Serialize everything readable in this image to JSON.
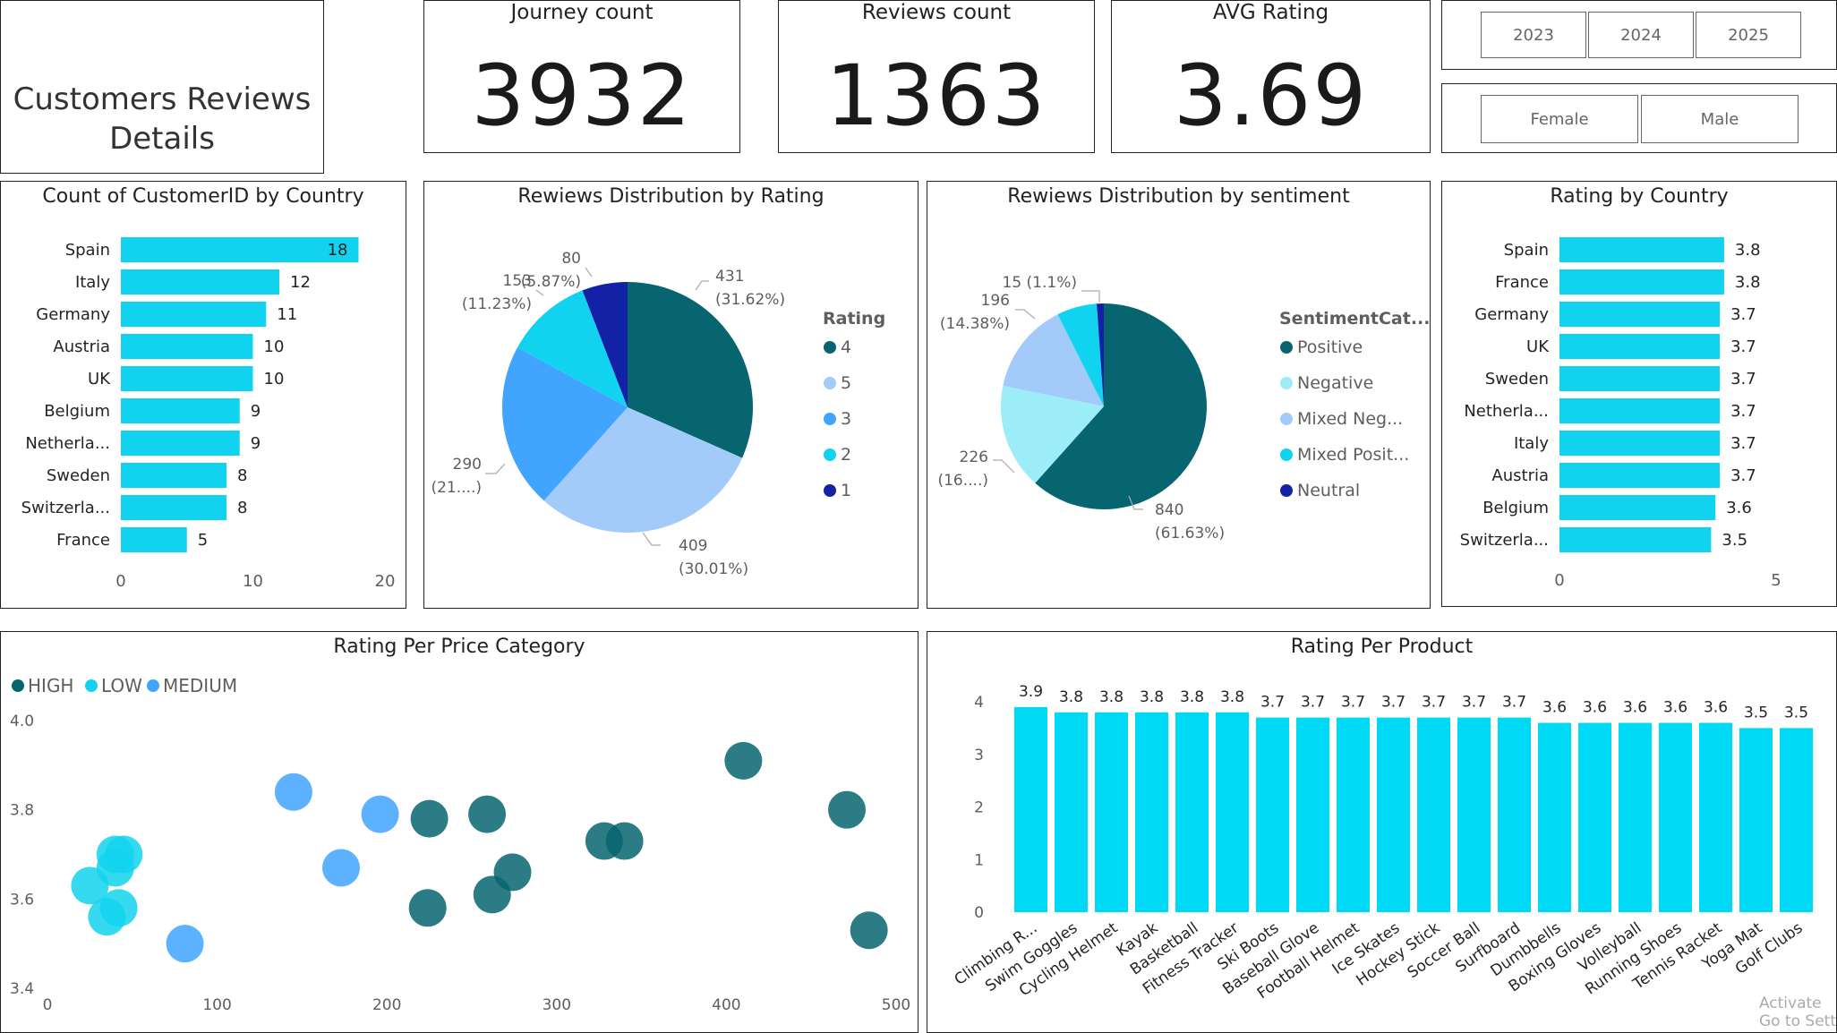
{
  "header": {
    "title_line1": "Customers Reviews",
    "title_line2": "Details"
  },
  "kpis": [
    {
      "label": "Journey count",
      "value": "3932"
    },
    {
      "label": "Reviews count",
      "value": "1363"
    },
    {
      "label": "AVG Rating",
      "value": "3.69"
    }
  ],
  "slicers": {
    "years": [
      "2023",
      "2024",
      "2025"
    ],
    "genders": [
      "Female",
      "Male"
    ]
  },
  "colors": {
    "cyan": "#12D3EF",
    "teal": "#076570",
    "light_blue": "#A2CBFA",
    "blue": "#41A4FF",
    "light_cyan": "#9CEDF8",
    "navy": "#1321A6"
  },
  "watermark": {
    "line1": "Activate",
    "line2": "Go to Sett"
  },
  "chart_data": [
    {
      "id": "customers_by_country",
      "type": "bar",
      "orientation": "horizontal",
      "title": "Count of CustomerID by Country",
      "categories": [
        "Spain",
        "Italy",
        "Germany",
        "Austria",
        "UK",
        "Belgium",
        "Netherla...",
        "Sweden",
        "Switzerla...",
        "France"
      ],
      "values": [
        18,
        12,
        11,
        10,
        10,
        9,
        9,
        8,
        8,
        5
      ],
      "xlim": [
        0,
        20
      ],
      "xticks": [
        "0",
        "10",
        "20"
      ]
    },
    {
      "id": "reviews_by_rating",
      "type": "pie",
      "title": "Rewiews Distribution by Rating",
      "legend_title": "Rating",
      "legend_placement": "right",
      "slices": [
        {
          "label": "4",
          "value": 431,
          "pct": "31.62%",
          "color": "#076570"
        },
        {
          "label": "5",
          "value": 409,
          "pct": "30.01%",
          "color": "#A2CBFA"
        },
        {
          "label": "3",
          "value": 290,
          "pct": "21....",
          "color": "#41A4FF"
        },
        {
          "label": "2",
          "value": 153,
          "pct": "11.23%",
          "color": "#12D3EF"
        },
        {
          "label": "1",
          "value": 80,
          "pct": "5.87%",
          "color": "#1321A6"
        }
      ]
    },
    {
      "id": "reviews_by_sentiment",
      "type": "pie",
      "title": "Rewiews Distribution by sentiment",
      "legend_title": "SentimentCat...",
      "legend_placement": "right",
      "slices": [
        {
          "label": "Positive",
          "value": 840,
          "pct": "61.63%",
          "color": "#076570"
        },
        {
          "label": "Negative",
          "value": 226,
          "pct": "16....",
          "color": "#9CEDF8"
        },
        {
          "label": "Mixed Neg...",
          "value": 196,
          "pct": "14.38%",
          "color": "#A2CBFA"
        },
        {
          "label": "Mixed Posit...",
          "value": 86,
          "pct": "",
          "color": "#12D3EF"
        },
        {
          "label": "Neutral",
          "value": 15,
          "pct": "1.1%",
          "color": "#1321A6"
        }
      ]
    },
    {
      "id": "rating_by_country",
      "type": "bar",
      "orientation": "horizontal",
      "title": "Rating by Country",
      "categories": [
        "Spain",
        "France",
        "Germany",
        "UK",
        "Sweden",
        "Netherla...",
        "Italy",
        "Austria",
        "Belgium",
        "Switzerla..."
      ],
      "values": [
        3.8,
        3.8,
        3.7,
        3.7,
        3.7,
        3.7,
        3.7,
        3.7,
        3.6,
        3.5
      ],
      "xlim": [
        0,
        5
      ],
      "xticks": [
        "0",
        "5"
      ]
    },
    {
      "id": "rating_per_price_category",
      "type": "scatter",
      "title": "Rating Per Price Category",
      "legend_placement": "top-left",
      "xlim": [
        0,
        500
      ],
      "ylim": [
        3.4,
        4.0
      ],
      "xticks": [
        "0",
        "100",
        "200",
        "300",
        "400",
        "500"
      ],
      "yticks": [
        "3.4",
        "3.6",
        "3.8",
        "4.0"
      ],
      "series": [
        {
          "name": "HIGH",
          "color": "#076570",
          "points": [
            [
              225,
              3.78
            ],
            [
              259,
              3.79
            ],
            [
              328,
              3.73
            ],
            [
              340,
              3.73
            ],
            [
              274,
              3.66
            ],
            [
              262,
              3.61
            ],
            [
              224,
              3.58
            ],
            [
              410,
              3.91
            ],
            [
              471,
              3.8
            ],
            [
              484,
              3.53
            ]
          ]
        },
        {
          "name": "LOW",
          "color": "#12D3EF",
          "points": [
            [
              40,
              3.7
            ],
            [
              45,
              3.7
            ],
            [
              40,
              3.67
            ],
            [
              25,
              3.63
            ],
            [
              42,
              3.58
            ],
            [
              35,
              3.56
            ]
          ]
        },
        {
          "name": "MEDIUM",
          "color": "#41A4FF",
          "points": [
            [
              145,
              3.84
            ],
            [
              196,
              3.79
            ],
            [
              173,
              3.67
            ],
            [
              81,
              3.5
            ]
          ]
        }
      ]
    },
    {
      "id": "rating_per_product",
      "type": "bar",
      "orientation": "vertical",
      "title": "Rating Per Product",
      "categories": [
        "Climbing R...",
        "Swim Goggles",
        "Cycling Helmet",
        "Kayak",
        "Basketball",
        "Fitness Tracker",
        "Ski Boots",
        "Baseball Glove",
        "Football Helmet",
        "Ice Skates",
        "Hockey Stick",
        "Soccer Ball",
        "Surfboard",
        "Dumbbells",
        "Boxing Gloves",
        "Volleyball",
        "Running Shoes",
        "Tennis Racket",
        "Yoga Mat",
        "Golf Clubs"
      ],
      "values": [
        3.9,
        3.8,
        3.8,
        3.8,
        3.8,
        3.8,
        3.7,
        3.7,
        3.7,
        3.7,
        3.7,
        3.7,
        3.7,
        3.6,
        3.6,
        3.6,
        3.6,
        3.6,
        3.5,
        3.5
      ],
      "ylim": [
        0,
        4.3
      ],
      "yticks": [
        "0",
        "1",
        "2",
        "3",
        "4"
      ]
    }
  ]
}
